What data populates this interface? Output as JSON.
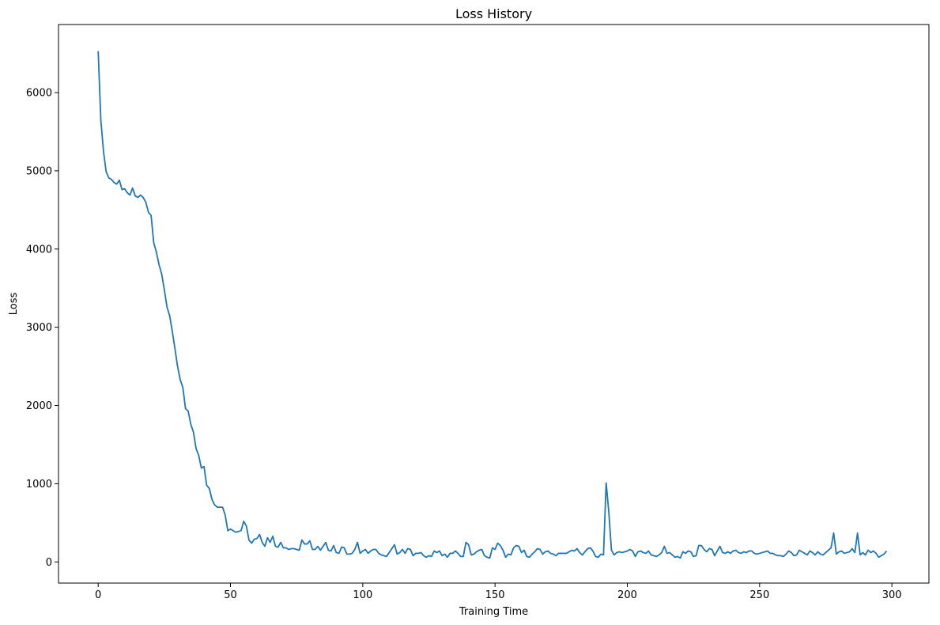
{
  "chart_data": {
    "type": "line",
    "title": "Loss History",
    "xlabel": "Training Time",
    "ylabel": "Loss",
    "xlim": [
      -15,
      314
    ],
    "ylim": [
      -270,
      6870
    ],
    "xticks": [
      0,
      50,
      100,
      150,
      200,
      250,
      300
    ],
    "yticks": [
      0,
      1000,
      2000,
      3000,
      4000,
      5000,
      6000
    ],
    "grid": false,
    "line_color": "#1f77b4",
    "series": [
      {
        "values": [
          6530,
          5650,
          5250,
          4990,
          4910,
          4890,
          4850,
          4830,
          4880,
          4760,
          4770,
          4720,
          4690,
          4780,
          4680,
          4660,
          4690,
          4660,
          4600,
          4470,
          4430,
          4080,
          3960,
          3800,
          3680,
          3480,
          3260,
          3150,
          2950,
          2730,
          2500,
          2330,
          2230,
          1960,
          1930,
          1760,
          1660,
          1450,
          1360,
          1200,
          1220,
          980,
          940,
          800,
          730,
          700,
          700,
          700,
          600,
          400,
          420,
          400,
          380,
          390,
          400,
          520,
          460,
          280,
          240,
          290,
          300,
          350,
          250,
          200,
          310,
          250,
          330,
          200,
          190,
          250,
          180,
          180,
          160,
          170,
          170,
          160,
          150,
          280,
          230,
          230,
          270,
          160,
          160,
          200,
          150,
          200,
          250,
          150,
          140,
          210,
          120,
          110,
          190,
          180,
          100,
          100,
          110,
          160,
          250,
          110,
          140,
          160,
          110,
          140,
          160,
          160,
          110,
          90,
          80,
          70,
          120,
          170,
          220,
          100,
          120,
          160,
          110,
          170,
          160,
          80,
          110,
          110,
          120,
          80,
          60,
          80,
          70,
          140,
          120,
          140,
          80,
          100,
          60,
          110,
          110,
          140,
          110,
          70,
          70,
          250,
          220,
          90,
          100,
          130,
          150,
          160,
          80,
          60,
          50,
          180,
          160,
          240,
          210,
          150,
          60,
          100,
          90,
          180,
          210,
          200,
          120,
          150,
          70,
          60,
          100,
          130,
          170,
          160,
          100,
          130,
          140,
          110,
          100,
          80,
          110,
          110,
          110,
          110,
          130,
          150,
          140,
          170,
          120,
          90,
          130,
          170,
          180,
          140,
          70,
          60,
          100,
          90,
          1010,
          640,
          150,
          90,
          120,
          130,
          120,
          130,
          140,
          160,
          140,
          70,
          130,
          140,
          120,
          110,
          140,
          90,
          80,
          70,
          90,
          120,
          200,
          110,
          120,
          90,
          60,
          70,
          50,
          130,
          110,
          140,
          130,
          70,
          80,
          210,
          210,
          160,
          130,
          170,
          160,
          80,
          140,
          200,
          120,
          110,
          130,
          110,
          140,
          150,
          120,
          110,
          130,
          120,
          140,
          140,
          110,
          100,
          110,
          120,
          130,
          140,
          110,
          110,
          90,
          80,
          80,
          70,
          100,
          140,
          120,
          80,
          90,
          150,
          130,
          110,
          90,
          140,
          120,
          90,
          130,
          100,
          90,
          120,
          150,
          180,
          370,
          100,
          130,
          140,
          110,
          120,
          130,
          170,
          120,
          370,
          90,
          120,
          90,
          150,
          120,
          140,
          110,
          60,
          80,
          100,
          140
        ]
      }
    ]
  }
}
